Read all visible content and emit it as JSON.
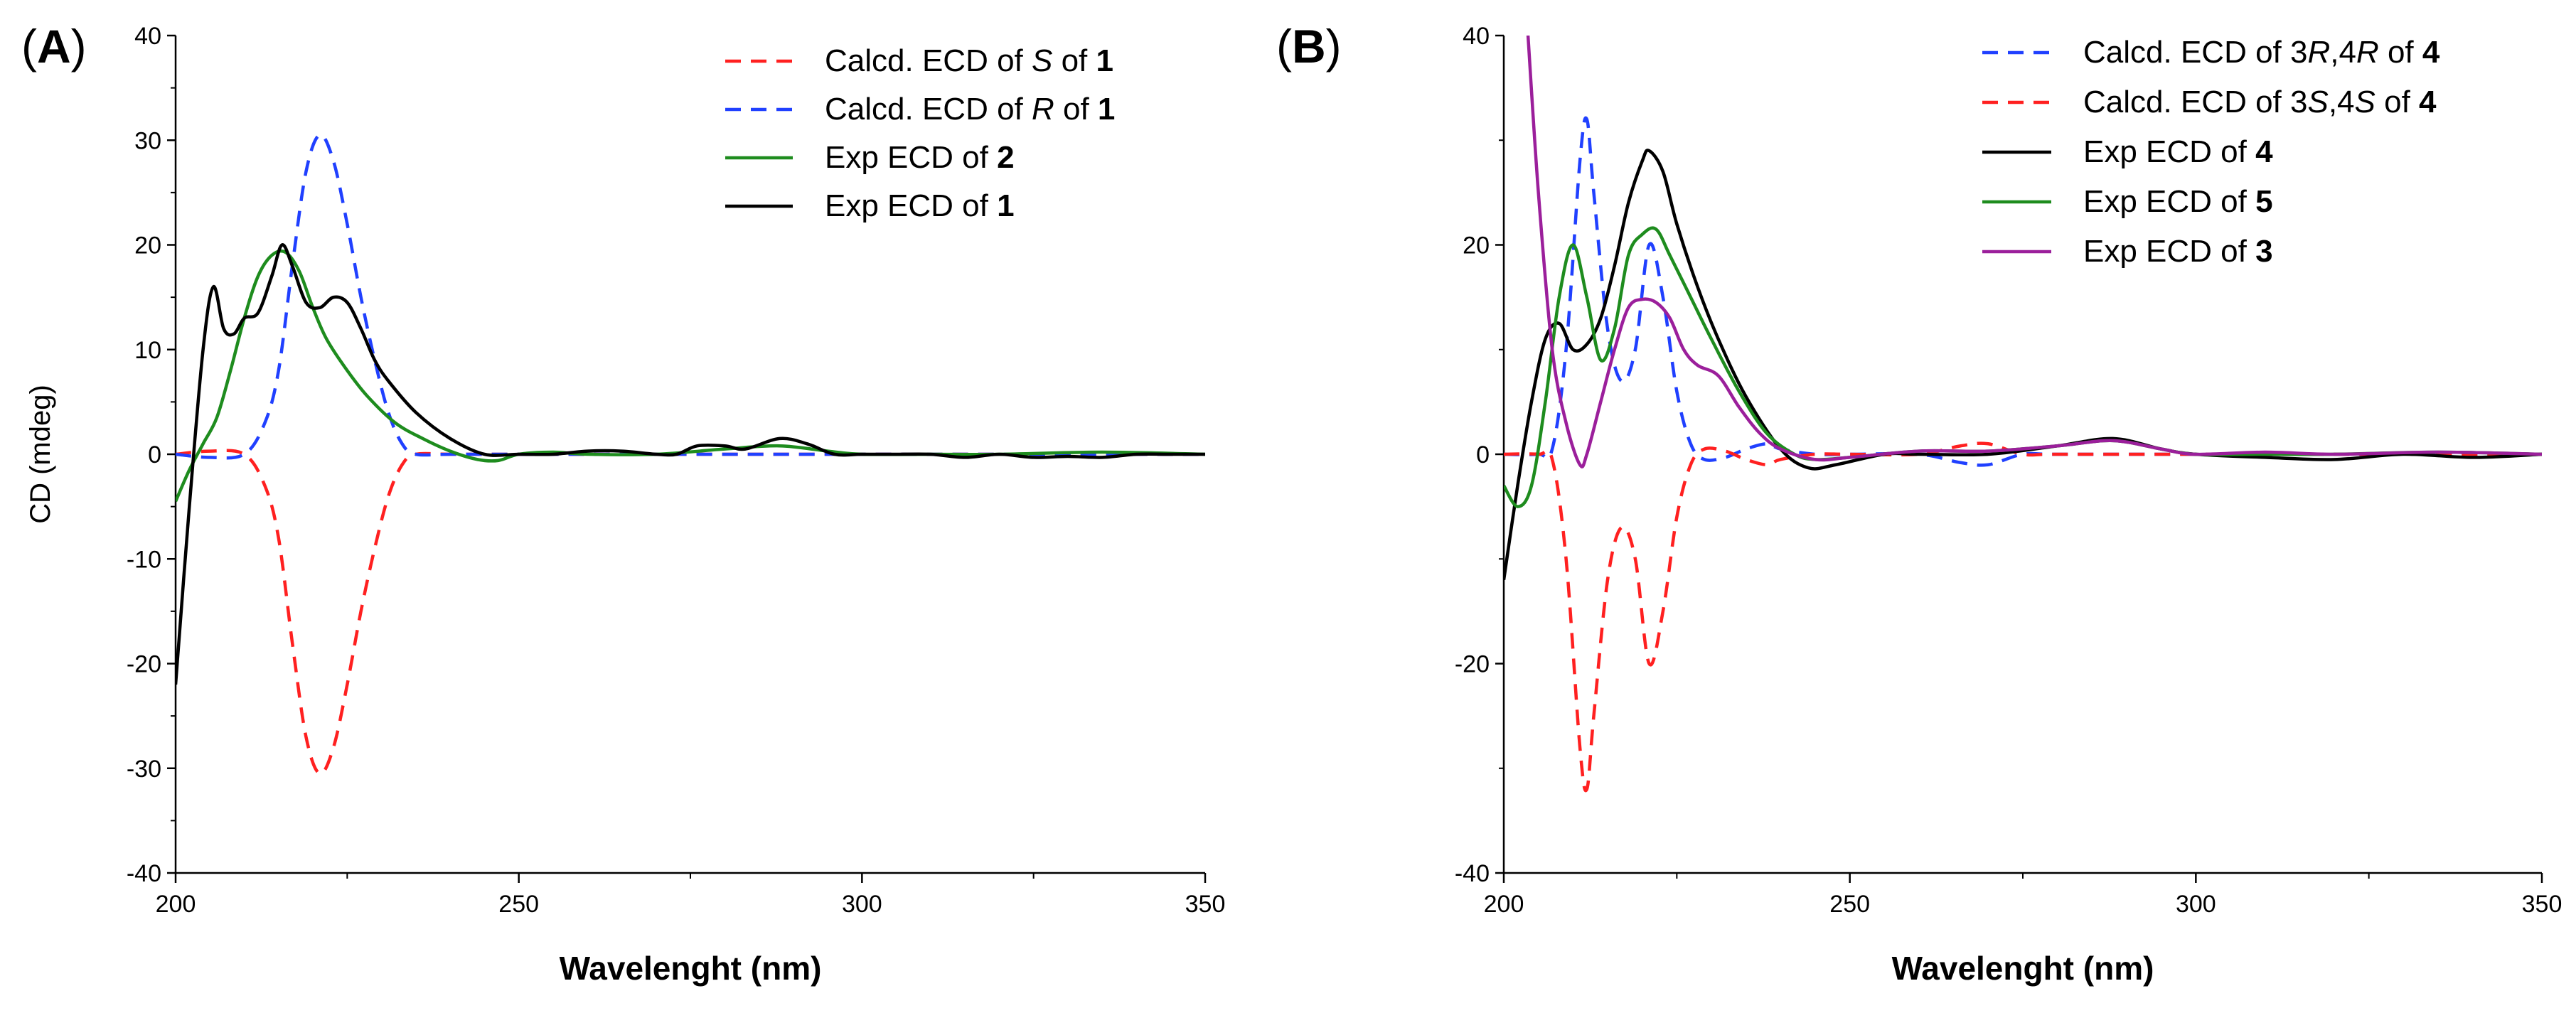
{
  "chart_data": [
    {
      "type": "line",
      "panel_label": "A",
      "xlabel": "Wavelenght (nm)",
      "ylabel": "CD (mdeg)",
      "xlim": [
        200,
        350
      ],
      "ylim": [
        -40,
        40
      ],
      "xticks": [
        200,
        250,
        300,
        350
      ],
      "yticks": [
        -40,
        -30,
        -20,
        -10,
        0,
        10,
        20,
        30,
        40
      ],
      "xtick_labels": [
        "200",
        "250",
        "300",
        "350"
      ],
      "ytick_labels": [
        "-40",
        "-30",
        "-20",
        "-10",
        "0",
        "10",
        "20",
        "30",
        "40"
      ],
      "legend_position": "top-right",
      "series": [
        {
          "name": "Calcd. ECD of S of 1",
          "label": {
            "pre": "Calcd. ECD of ",
            "italic": "S",
            "mid": " of ",
            "bold": "1"
          },
          "color": "#ff2020",
          "dashed": true,
          "x": [
            200,
            205,
            210,
            213,
            215,
            217,
            219,
            221,
            223,
            225,
            227,
            229,
            231,
            233,
            235,
            240,
            250,
            300,
            350
          ],
          "y": [
            0,
            0.3,
            0,
            -3,
            -8,
            -18,
            -27,
            -30.5,
            -28,
            -22,
            -15,
            -9,
            -4,
            -1,
            0,
            0,
            0,
            0,
            0
          ]
        },
        {
          "name": "Calcd. ECD of R of 1",
          "label": {
            "pre": "Calcd. ECD of ",
            "italic": "R",
            "mid": " of ",
            "bold": "1"
          },
          "color": "#2040ff",
          "dashed": true,
          "x": [
            200,
            205,
            210,
            213,
            215,
            217,
            219,
            221,
            223,
            225,
            227,
            229,
            231,
            233,
            235,
            240,
            250,
            300,
            350
          ],
          "y": [
            0,
            -0.3,
            0,
            3,
            8,
            18,
            27,
            30.5,
            28,
            22,
            15,
            9,
            4,
            1,
            0,
            0,
            0,
            0,
            0
          ]
        },
        {
          "name": "Exp ECD of 2",
          "label": {
            "pre": "Exp ECD of ",
            "italic": "",
            "mid": "",
            "bold": "2"
          },
          "color": "#1e8c1e",
          "dashed": false,
          "x": [
            200,
            202,
            204,
            206,
            208,
            210,
            212,
            214,
            216,
            218,
            220,
            222,
            225,
            228,
            232,
            236,
            240,
            244,
            247,
            250,
            255,
            260,
            270,
            280,
            288,
            295,
            300,
            310,
            320,
            335,
            350
          ],
          "y": [
            -4.5,
            -1.5,
            1,
            3.5,
            8,
            13,
            17,
            19,
            19.3,
            17.5,
            14,
            11,
            8,
            5.5,
            3,
            1.5,
            0.3,
            -0.5,
            -0.6,
            0,
            0.2,
            0,
            0,
            0.5,
            0.8,
            0.3,
            0,
            0,
            0,
            0.2,
            0
          ]
        },
        {
          "name": "Exp ECD of 1",
          "label": {
            "pre": "Exp ECD of ",
            "italic": "",
            "mid": "",
            "bold": "1"
          },
          "color": "#000000",
          "dashed": false,
          "x": [
            200,
            202,
            204,
            205.5,
            207,
            208.5,
            210,
            212,
            214,
            215.5,
            217,
            219,
            221,
            223,
            225,
            227,
            229,
            231,
            235,
            240,
            245,
            250,
            255,
            260,
            265,
            270,
            273,
            276,
            280,
            283,
            288,
            292,
            296,
            300,
            305,
            310,
            315,
            320,
            325,
            330,
            335,
            340,
            345,
            350
          ],
          "y": [
            -22,
            -5,
            10,
            16,
            12,
            11.5,
            13,
            13.5,
            17,
            20,
            18,
            14.5,
            14,
            15,
            14.5,
            12,
            9,
            7,
            4,
            1.5,
            0,
            0,
            0,
            0.3,
            0.3,
            0,
            0,
            0.8,
            0.8,
            0.5,
            1.5,
            1,
            0,
            0,
            0,
            0,
            -0.3,
            0,
            -0.3,
            -0.2,
            -0.3,
            0,
            0,
            0
          ]
        }
      ]
    },
    {
      "type": "line",
      "panel_label": "B",
      "xlabel": "Wavelenght (nm)",
      "ylabel": "",
      "xlim": [
        200,
        350
      ],
      "ylim": [
        -40,
        40
      ],
      "xticks": [
        200,
        250,
        300,
        350
      ],
      "yticks": [
        -40,
        -20,
        0,
        20,
        40
      ],
      "xtick_labels": [
        "200",
        "250",
        "300",
        "350"
      ],
      "ytick_labels": [
        "-40",
        "-20",
        "0",
        "20",
        "40"
      ],
      "legend_position": "top-right",
      "series": [
        {
          "name": "Calcd. ECD of 3R,4R of 4",
          "label": {
            "pre": "Calcd. ECD of 3",
            "italic": "R",
            "mid": ",4",
            "italic2": "R",
            "post": " of ",
            "bold": "4"
          },
          "color": "#2040ff",
          "dashed": true,
          "x": [
            200,
            205,
            207,
            209,
            211,
            212,
            213,
            215,
            217,
            219,
            221,
            223,
            225,
            227,
            229,
            232,
            235,
            238,
            240,
            245,
            250,
            260,
            266,
            270,
            275,
            280,
            300,
            350
          ],
          "y": [
            0,
            0,
            0.5,
            10,
            28,
            32,
            25,
            12,
            7,
            10,
            20,
            15,
            6,
            1,
            -0.5,
            -0.3,
            0.5,
            1,
            0.5,
            0,
            0,
            0,
            -0.8,
            -1,
            0,
            0,
            0,
            0
          ]
        },
        {
          "name": "Calcd. ECD of 3S,4S of 4",
          "label": {
            "pre": "Calcd. ECD of 3",
            "italic": "S",
            "mid": ",4",
            "italic2": "S",
            "post": " of ",
            "bold": "4"
          },
          "color": "#ff2020",
          "dashed": true,
          "x": [
            200,
            205,
            207,
            209,
            211,
            212,
            213,
            215,
            217,
            219,
            221,
            223,
            225,
            227,
            229,
            232,
            235,
            238,
            240,
            245,
            250,
            260,
            266,
            270,
            275,
            280,
            300,
            350
          ],
          "y": [
            0,
            0,
            -0.5,
            -10,
            -28,
            -32,
            -25,
            -12,
            -7,
            -10,
            -20,
            -15,
            -6,
            -1,
            0.5,
            0.3,
            -0.5,
            -1,
            -0.5,
            0,
            0,
            0,
            0.8,
            1,
            0,
            0,
            0,
            0
          ]
        },
        {
          "name": "Exp ECD of 4",
          "label": {
            "pre": "Exp ECD of ",
            "italic": "",
            "mid": "",
            "bold": "4"
          },
          "color": "#000000",
          "dashed": false,
          "x": [
            200,
            202,
            204,
            206,
            208,
            210,
            212,
            214,
            216,
            218,
            220,
            221,
            223,
            225,
            228,
            231,
            235,
            240,
            244,
            248,
            255,
            260,
            270,
            280,
            288,
            295,
            300,
            310,
            320,
            330,
            340,
            350
          ],
          "y": [
            -12,
            -3,
            5,
            11,
            12.5,
            10,
            10.5,
            13,
            18,
            24,
            28,
            29,
            27,
            22,
            16,
            11,
            5.5,
            0.5,
            -1.3,
            -1,
            0,
            0,
            0,
            0.8,
            1.5,
            0.5,
            0,
            -0.3,
            -0.5,
            0,
            -0.3,
            0
          ]
        },
        {
          "name": "Exp ECD of 5",
          "label": {
            "pre": "Exp ECD of ",
            "italic": "",
            "mid": "",
            "bold": "5"
          },
          "color": "#1e8c1e",
          "dashed": false,
          "x": [
            200,
            202,
            204,
            206,
            208,
            210,
            212,
            214,
            216,
            218,
            220,
            222,
            224,
            227,
            230,
            234,
            238,
            242,
            245,
            250,
            260,
            270,
            280,
            288,
            295,
            300,
            310,
            320,
            335,
            350
          ],
          "y": [
            -3,
            -5,
            -3,
            5,
            15,
            20,
            15,
            9,
            12,
            19,
            21,
            21.5,
            19,
            15,
            11,
            6,
            2,
            0,
            -0.5,
            -0.3,
            0.3,
            0.3,
            0.8,
            1.3,
            0.5,
            0,
            0,
            0,
            0.2,
            0
          ]
        },
        {
          "name": "Exp ECD of 3",
          "label": {
            "pre": "Exp ECD of ",
            "italic": "",
            "mid": "",
            "bold": "3"
          },
          "color": "#9b1f9b",
          "dashed": false,
          "x": [
            203.5,
            205,
            207,
            209,
            211,
            212,
            214,
            216,
            218,
            220,
            222,
            224,
            226,
            228,
            231,
            234,
            237,
            240,
            245,
            250,
            260,
            270,
            280,
            288,
            295,
            300,
            310,
            320,
            335,
            350
          ],
          "y": [
            40,
            25,
            10,
            3,
            -1,
            0,
            5,
            10,
            14,
            14.8,
            14.5,
            13,
            10,
            8.5,
            7.5,
            4.5,
            2,
            0.5,
            -0.5,
            -0.3,
            0.3,
            0.3,
            0.8,
            1.3,
            0.5,
            0,
            0.2,
            0,
            0.2,
            0
          ]
        }
      ]
    }
  ]
}
